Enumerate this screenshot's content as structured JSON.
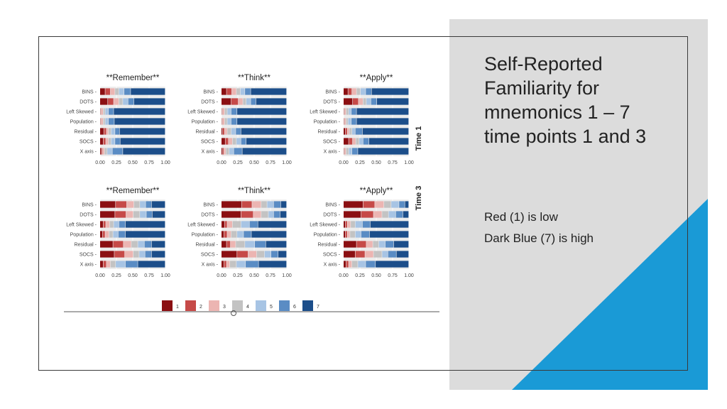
{
  "slide": {
    "title_lines": [
      "Self-Reported",
      "Familiarity for",
      "mnemonics 1 – 7",
      "time points 1 and 3"
    ],
    "note1": "Red (1) is low",
    "note2": "Dark Blue (7) is high"
  },
  "colors": {
    "scale": [
      "#8b0f12",
      "#c64a48",
      "#ecb5b2",
      "#c3c3c3",
      "#a7c4e4",
      "#5a8cc4",
      "#1c4e8a"
    ],
    "accent_blue": "#1a9ad6",
    "panel_gray": "#dcdcdc"
  },
  "chart_data": {
    "type": "stacked-bar",
    "categories": [
      "BINS",
      "DOTS",
      "Left Skewed",
      "Population",
      "Residual",
      "SOCS",
      "X axis"
    ],
    "x_ticks": [
      "0.00",
      "0.25",
      "0.50",
      "0.75",
      "1.00"
    ],
    "xlim": [
      0,
      1
    ],
    "legend": [
      "1",
      "2",
      "3",
      "4",
      "5",
      "6",
      "7"
    ],
    "legend_position": "bottom",
    "row_labels": [
      "Time 1",
      "Time 3"
    ],
    "panels": [
      {
        "title": "**Remember**",
        "row": 0,
        "col": 0,
        "values": [
          [
            0.08,
            0.08,
            0.07,
            0.06,
            0.08,
            0.1,
            0.53
          ],
          [
            0.12,
            0.09,
            0.08,
            0.06,
            0.08,
            0.09,
            0.48
          ],
          [
            0.01,
            0.01,
            0.03,
            0.03,
            0.05,
            0.08,
            0.79
          ],
          [
            0.01,
            0.01,
            0.03,
            0.03,
            0.05,
            0.09,
            0.78
          ],
          [
            0.06,
            0.04,
            0.03,
            0.04,
            0.06,
            0.07,
            0.7
          ],
          [
            0.05,
            0.04,
            0.04,
            0.04,
            0.06,
            0.08,
            0.69
          ],
          [
            0.02,
            0.02,
            0.03,
            0.04,
            0.08,
            0.16,
            0.65
          ]
        ]
      },
      {
        "title": "**Think**",
        "row": 0,
        "col": 1,
        "values": [
          [
            0.08,
            0.08,
            0.07,
            0.06,
            0.07,
            0.09,
            0.55
          ],
          [
            0.15,
            0.11,
            0.07,
            0.05,
            0.07,
            0.08,
            0.47
          ],
          [
            0.01,
            0.01,
            0.03,
            0.04,
            0.06,
            0.09,
            0.76
          ],
          [
            0.01,
            0.01,
            0.03,
            0.04,
            0.06,
            0.09,
            0.76
          ],
          [
            0.02,
            0.03,
            0.04,
            0.06,
            0.07,
            0.08,
            0.7
          ],
          [
            0.06,
            0.05,
            0.06,
            0.06,
            0.07,
            0.08,
            0.62
          ],
          [
            0.02,
            0.02,
            0.03,
            0.05,
            0.07,
            0.13,
            0.68
          ]
        ]
      },
      {
        "title": "**Apply**",
        "row": 0,
        "col": 2,
        "values": [
          [
            0.07,
            0.06,
            0.07,
            0.06,
            0.08,
            0.09,
            0.57
          ],
          [
            0.14,
            0.09,
            0.07,
            0.05,
            0.07,
            0.09,
            0.49
          ],
          [
            0.01,
            0.01,
            0.02,
            0.04,
            0.04,
            0.08,
            0.8
          ],
          [
            0.01,
            0.01,
            0.02,
            0.03,
            0.05,
            0.08,
            0.8
          ],
          [
            0.03,
            0.03,
            0.03,
            0.04,
            0.05,
            0.11,
            0.71
          ],
          [
            0.08,
            0.06,
            0.05,
            0.05,
            0.06,
            0.09,
            0.61
          ],
          [
            0.01,
            0.01,
            0.02,
            0.04,
            0.05,
            0.09,
            0.78
          ]
        ]
      },
      {
        "title": "**Remember**",
        "row": 1,
        "col": 0,
        "values": [
          [
            0.24,
            0.17,
            0.11,
            0.09,
            0.09,
            0.09,
            0.21
          ],
          [
            0.23,
            0.17,
            0.11,
            0.1,
            0.1,
            0.09,
            0.2
          ],
          [
            0.05,
            0.04,
            0.06,
            0.06,
            0.08,
            0.1,
            0.61
          ],
          [
            0.04,
            0.04,
            0.06,
            0.06,
            0.08,
            0.11,
            0.61
          ],
          [
            0.2,
            0.16,
            0.12,
            0.1,
            0.1,
            0.11,
            0.21
          ],
          [
            0.22,
            0.16,
            0.13,
            0.09,
            0.09,
            0.1,
            0.21
          ],
          [
            0.05,
            0.05,
            0.06,
            0.08,
            0.15,
            0.19,
            0.42
          ]
        ]
      },
      {
        "title": "**Think**",
        "row": 1,
        "col": 1,
        "values": [
          [
            0.31,
            0.16,
            0.14,
            0.09,
            0.1,
            0.11,
            0.09
          ],
          [
            0.3,
            0.19,
            0.12,
            0.11,
            0.08,
            0.1,
            0.1
          ],
          [
            0.05,
            0.04,
            0.08,
            0.13,
            0.13,
            0.13,
            0.44
          ],
          [
            0.04,
            0.05,
            0.06,
            0.09,
            0.1,
            0.12,
            0.54
          ],
          [
            0.08,
            0.06,
            0.08,
            0.14,
            0.15,
            0.17,
            0.32
          ],
          [
            0.24,
            0.17,
            0.13,
            0.12,
            0.1,
            0.11,
            0.13
          ],
          [
            0.04,
            0.04,
            0.05,
            0.1,
            0.14,
            0.2,
            0.43
          ]
        ]
      },
      {
        "title": "**Apply**",
        "row": 1,
        "col": 2,
        "values": [
          [
            0.3,
            0.18,
            0.14,
            0.11,
            0.12,
            0.09,
            0.06
          ],
          [
            0.27,
            0.19,
            0.13,
            0.1,
            0.11,
            0.11,
            0.09
          ],
          [
            0.03,
            0.03,
            0.05,
            0.07,
            0.11,
            0.12,
            0.59
          ],
          [
            0.03,
            0.03,
            0.04,
            0.08,
            0.09,
            0.13,
            0.6
          ],
          [
            0.2,
            0.15,
            0.1,
            0.09,
            0.1,
            0.13,
            0.23
          ],
          [
            0.18,
            0.15,
            0.13,
            0.13,
            0.09,
            0.13,
            0.19
          ],
          [
            0.04,
            0.04,
            0.05,
            0.09,
            0.12,
            0.15,
            0.51
          ]
        ]
      }
    ]
  }
}
